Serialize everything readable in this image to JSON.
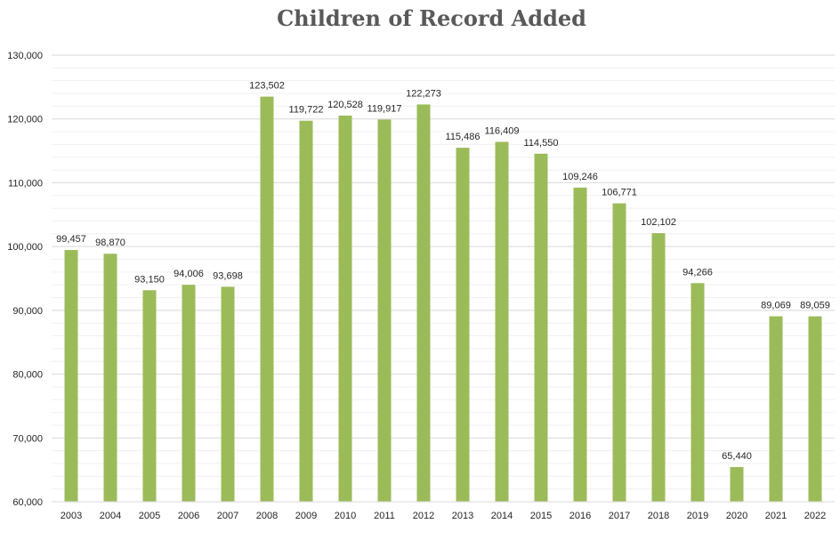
{
  "chart_data": {
    "type": "bar",
    "title": "Children of Record Added",
    "xlabel": "",
    "ylabel": "",
    "categories": [
      "2003",
      "2004",
      "2005",
      "2006",
      "2007",
      "2008",
      "2009",
      "2010",
      "2011",
      "2012",
      "2013",
      "2014",
      "2015",
      "2016",
      "2017",
      "2018",
      "2019",
      "2020",
      "2021",
      "2022"
    ],
    "values": [
      99457,
      98870,
      93150,
      94006,
      93698,
      123502,
      119722,
      120528,
      119917,
      122273,
      115486,
      116409,
      114550,
      109246,
      106771,
      102102,
      94266,
      65440,
      89069,
      89059
    ],
    "data_labels": [
      "99,457",
      "98,870",
      "93,150",
      "94,006",
      "93,698",
      "123,502",
      "119,722",
      "120,528",
      "119,917",
      "122,273",
      "115,486",
      "116,409",
      "114,550",
      "109,246",
      "106,771",
      "102,102",
      "94,266",
      "65,440",
      "89,069",
      "89,059"
    ],
    "ylim": [
      60000,
      130000
    ],
    "y_ticks": [
      "60,000",
      "70,000",
      "80,000",
      "90,000",
      "100,000",
      "110,000",
      "120,000",
      "130,000"
    ],
    "grid": true,
    "legend": "none",
    "bar_color": "#9bbb59",
    "gridline_color": "#d9d9d9"
  }
}
